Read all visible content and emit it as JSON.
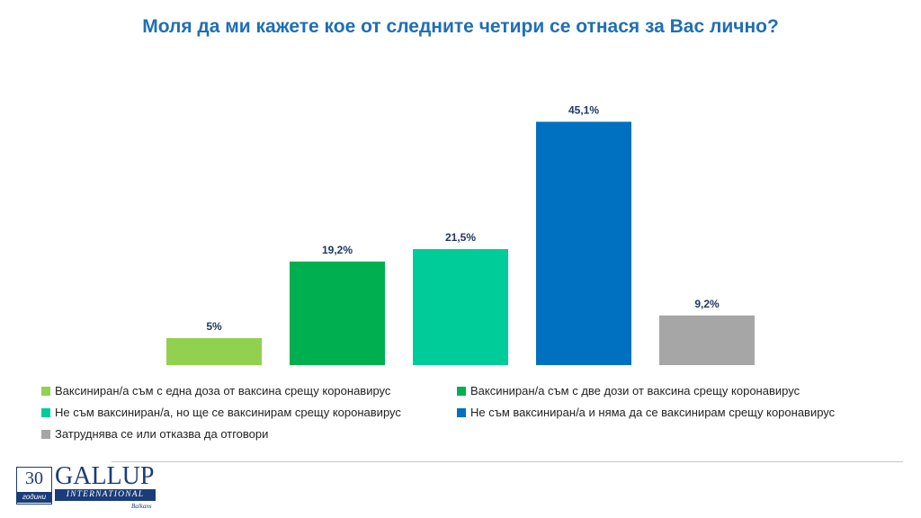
{
  "title": "Моля да ми кажете кое от следните четири се отнася за Вас лично?",
  "chart_data": {
    "type": "bar",
    "title": "Моля да ми кажете кое от следните четири се отнася за Вас лично?",
    "xlabel": "",
    "ylabel": "",
    "ylim": [
      0,
      50
    ],
    "grid": false,
    "legend_position": "bottom",
    "categories": [
      "Ваксиниран/а съм с една доза от ваксина срещу коронавирус",
      "Ваксиниран/а съм с две дози от ваксина срещу коронавирус",
      "Не съм ваксиниран/а, но ще се ваксинирам срещу коронавирус",
      "Не съм ваксиниран/а и няма да се ваксинирам срещу коронавирус",
      "Затруднява се или отказва да отговори"
    ],
    "values": [
      5,
      19.2,
      21.5,
      45.1,
      9.2
    ],
    "data_labels": [
      "5%",
      "19,2%",
      "21,5%",
      "45,1%",
      "9,2%"
    ],
    "colors": [
      "#92d050",
      "#00b050",
      "#00cc99",
      "#0070c0",
      "#a6a6a6"
    ]
  },
  "logo": {
    "years": "30",
    "years_word": "години",
    "brand": "GALLUP",
    "subbrand": "INTERNATIONAL",
    "region": "Balkans"
  }
}
